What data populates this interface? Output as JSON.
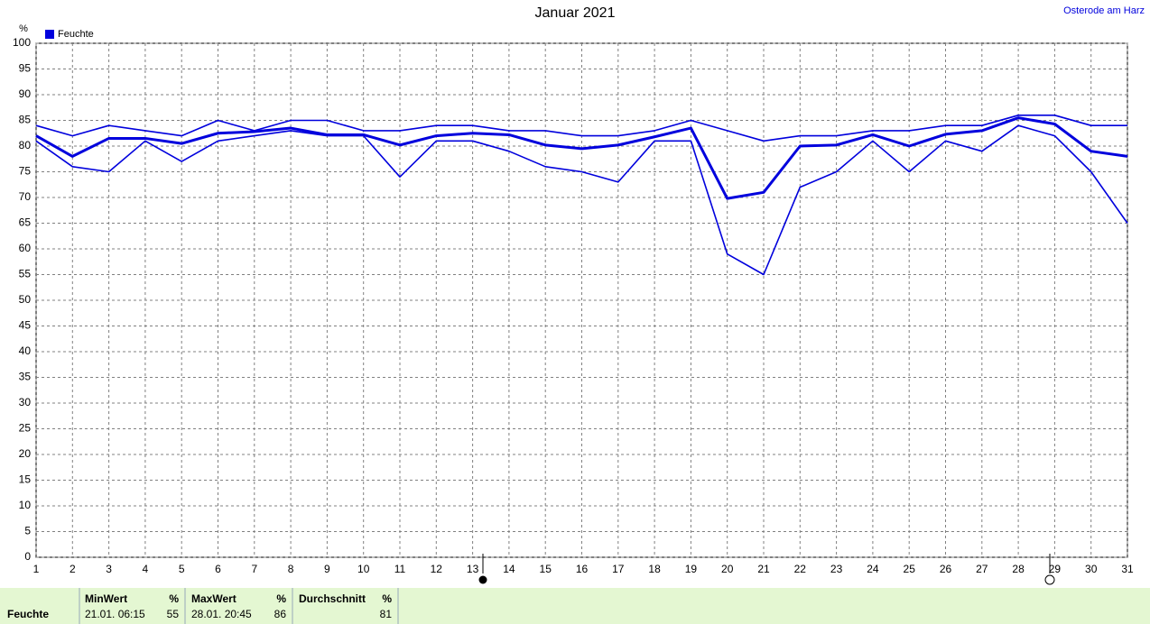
{
  "chart_data": {
    "type": "line",
    "title": "Januar 2021",
    "annotation": "Osterode am Harz",
    "y_label": "%",
    "x": [
      1,
      2,
      3,
      4,
      5,
      6,
      7,
      8,
      9,
      10,
      11,
      12,
      13,
      14,
      15,
      16,
      17,
      18,
      19,
      20,
      21,
      22,
      23,
      24,
      25,
      26,
      27,
      28,
      29,
      30,
      31
    ],
    "xlim": [
      1,
      31
    ],
    "xticks": [
      1,
      2,
      3,
      4,
      5,
      6,
      7,
      8,
      9,
      10,
      11,
      12,
      13,
      14,
      15,
      16,
      17,
      18,
      19,
      20,
      21,
      22,
      23,
      24,
      25,
      26,
      27,
      28,
      29,
      30,
      31
    ],
    "ylim": [
      0,
      100
    ],
    "yticks": [
      0,
      5,
      10,
      15,
      20,
      25,
      30,
      35,
      40,
      45,
      50,
      55,
      60,
      65,
      70,
      75,
      80,
      85,
      90,
      95,
      100
    ],
    "grid": true,
    "series": [
      {
        "name": "Feuchte",
        "color": "#0000dd",
        "values": [
          82,
          78,
          81.5,
          81.5,
          80.5,
          82.5,
          82.8,
          83.5,
          82.2,
          82.2,
          80.2,
          82,
          82.5,
          82.2,
          80.2,
          79.5,
          80.2,
          81.8,
          83.5,
          69.8,
          71,
          80,
          80.2,
          82.2,
          80,
          82.3,
          83,
          85.5,
          84.3,
          79,
          78
        ]
      },
      {
        "color": "#0000dd",
        "values": [
          84,
          82,
          84,
          83,
          82,
          85,
          83,
          85,
          85,
          83,
          83,
          84,
          84,
          83,
          83,
          82,
          82,
          83,
          85,
          83,
          81,
          82,
          82,
          83,
          83,
          84,
          84,
          86,
          86,
          84,
          84
        ]
      },
      {
        "color": "#0000dd",
        "values": [
          81,
          76,
          75,
          81,
          77,
          81,
          82,
          83,
          82,
          82,
          74,
          81,
          81,
          79,
          76,
          75,
          73,
          81,
          81,
          59,
          55,
          72,
          75,
          81,
          75,
          81,
          79,
          84,
          82,
          75,
          65
        ]
      }
    ]
  },
  "stats": {
    "label": "Feuchte",
    "columns": [
      {
        "title": "MinWert",
        "unit": "%",
        "time": "21.01.  06:15",
        "value": 55
      },
      {
        "title": "MaxWert",
        "unit": "%",
        "time": "28.01.  20:45",
        "value": 86
      },
      {
        "title": "Durchschnitt",
        "unit": "%",
        "value": 81
      }
    ]
  }
}
